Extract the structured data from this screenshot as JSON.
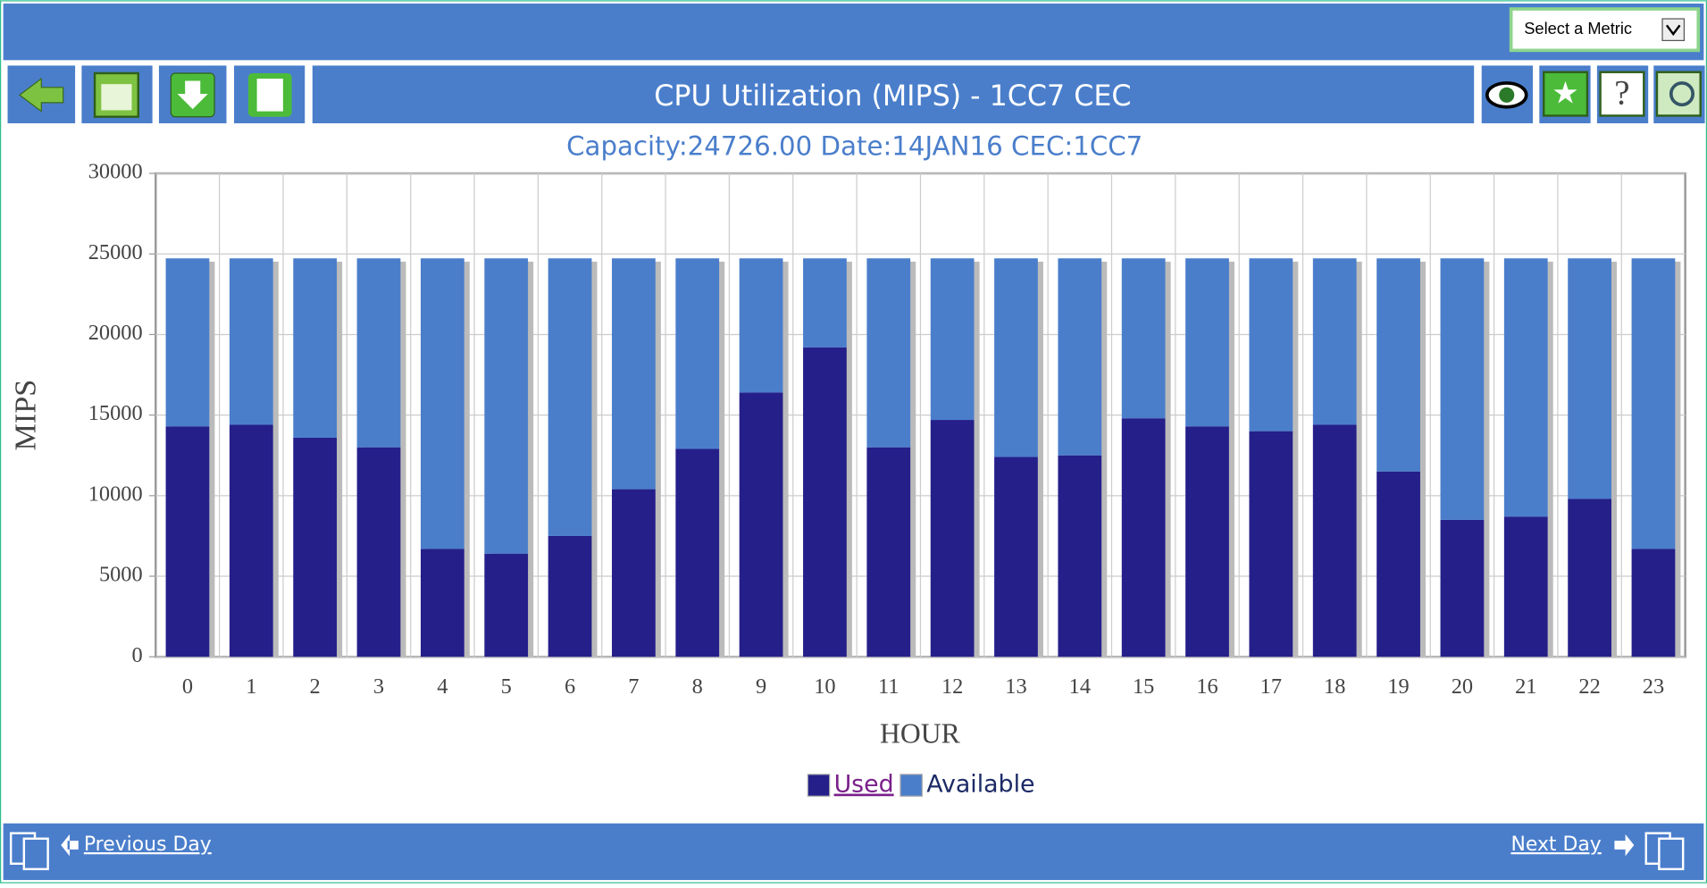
{
  "toolbar": {
    "metric_select": "Select a Metric"
  },
  "chart_data": {
    "type": "stacked_bar",
    "title": "CPU Utilization (MIPS) - 1CC7 CEC",
    "subtitle": "Capacity:24726.00 Date:14JAN16 CEC:1CC7",
    "x_label": "HOUR",
    "y_label": "MIPS",
    "categories": [
      "0",
      "1",
      "2",
      "3",
      "4",
      "5",
      "6",
      "7",
      "8",
      "9",
      "10",
      "11",
      "12",
      "13",
      "14",
      "15",
      "16",
      "17",
      "18",
      "19",
      "20",
      "21",
      "22",
      "23"
    ],
    "series": [
      {
        "name": "Used",
        "color": "#251f8a",
        "values": [
          14300,
          14400,
          13600,
          13000,
          6700,
          6400,
          7500,
          10400,
          12900,
          16400,
          19200,
          13000,
          14700,
          12400,
          12500,
          14800,
          14300,
          14000,
          14400,
          11500,
          8500,
          8700,
          9800,
          6700
        ]
      },
      {
        "name": "Available",
        "color": "#4a7ecb",
        "values": [
          10426,
          10326,
          11126,
          11726,
          18026,
          18326,
          17226,
          14326,
          11826,
          8326,
          5526,
          11726,
          10026,
          12326,
          12226,
          9926,
          10426,
          10726,
          10326,
          13226,
          16226,
          16026,
          14926,
          18026
        ]
      }
    ],
    "ylim": [
      0,
      30000
    ],
    "yticks": [
      0,
      5000,
      10000,
      15000,
      20000,
      25000,
      30000
    ],
    "grid": true
  },
  "footer": {
    "previous": "Previous Day",
    "next": "Next Day"
  }
}
